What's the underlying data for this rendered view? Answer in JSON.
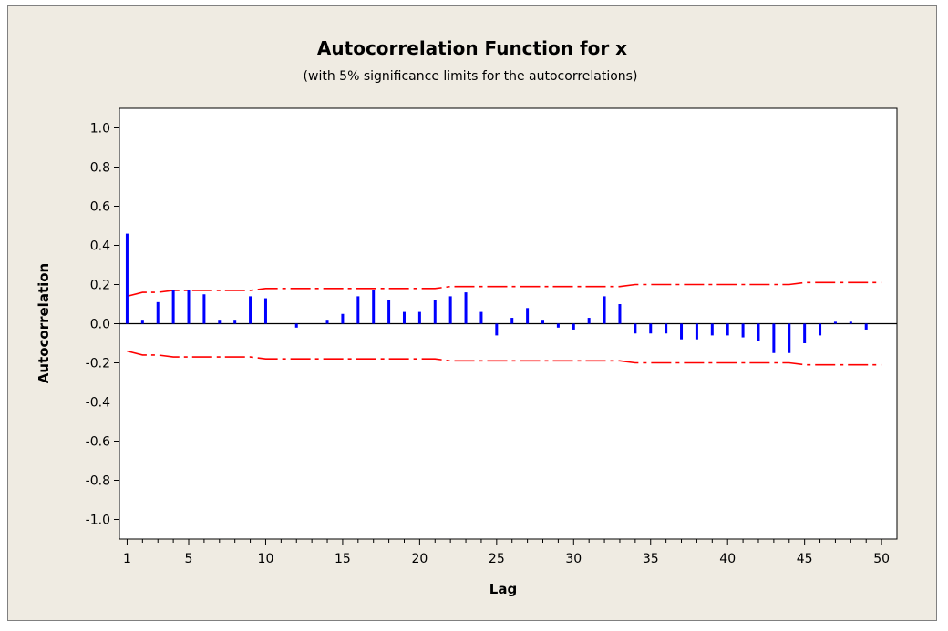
{
  "chart_data": {
    "type": "bar",
    "title": "Autocorrelation Function for x",
    "subtitle": "(with 5% significance limits for the autocorrelations)",
    "xlabel": "Lag",
    "ylabel": "Autocorrelation",
    "xlim": [
      0.5,
      51
    ],
    "ylim": [
      -1.1,
      1.1
    ],
    "x_ticks": [
      1,
      5,
      10,
      15,
      20,
      25,
      30,
      35,
      40,
      45,
      50
    ],
    "y_ticks": [
      1.0,
      0.8,
      0.6,
      0.4,
      0.2,
      0.0,
      -0.2,
      -0.4,
      -0.6,
      -0.8,
      -1.0
    ],
    "y_tick_labels": [
      "1.0",
      "0.8",
      "0.6",
      "0.4",
      "0.2",
      "0.0",
      "-0.2",
      "-0.4",
      "-0.6",
      "-0.8",
      "-1.0"
    ],
    "grid": false,
    "series": [
      {
        "name": "Autocorrelation",
        "color": "#0000ff",
        "x": [
          1,
          2,
          3,
          4,
          5,
          6,
          7,
          8,
          9,
          10,
          11,
          12,
          13,
          14,
          15,
          16,
          17,
          18,
          19,
          20,
          21,
          22,
          23,
          24,
          25,
          26,
          27,
          28,
          29,
          30,
          31,
          32,
          33,
          34,
          35,
          36,
          37,
          38,
          39,
          40,
          41,
          42,
          43,
          44,
          45,
          46,
          47,
          48,
          49
        ],
        "values": [
          0.46,
          0.02,
          0.11,
          0.17,
          0.17,
          0.15,
          0.02,
          0.02,
          0.14,
          0.13,
          0.0,
          -0.02,
          0.0,
          0.02,
          0.05,
          0.14,
          0.17,
          0.12,
          0.06,
          0.06,
          0.12,
          0.14,
          0.16,
          0.06,
          -0.06,
          0.03,
          0.08,
          0.02,
          -0.02,
          -0.03,
          0.03,
          0.14,
          0.1,
          -0.05,
          -0.05,
          -0.05,
          -0.08,
          -0.08,
          -0.06,
          -0.06,
          -0.07,
          -0.09,
          -0.15,
          -0.15,
          -0.1,
          -0.06,
          0.01,
          0.01,
          -0.03
        ]
      }
    ],
    "significance_limits": {
      "color": "#ff0000",
      "style": "dash-dot",
      "lags": [
        1,
        2,
        3,
        4,
        5,
        6,
        7,
        8,
        9,
        10,
        11,
        12,
        13,
        14,
        15,
        16,
        17,
        18,
        19,
        20,
        21,
        22,
        23,
        24,
        25,
        26,
        27,
        28,
        29,
        30,
        31,
        32,
        33,
        34,
        35,
        36,
        37,
        38,
        39,
        40,
        41,
        42,
        43,
        44,
        45,
        46,
        47,
        48,
        49,
        50
      ],
      "upper": [
        0.14,
        0.16,
        0.16,
        0.17,
        0.17,
        0.17,
        0.17,
        0.17,
        0.17,
        0.18,
        0.18,
        0.18,
        0.18,
        0.18,
        0.18,
        0.18,
        0.18,
        0.18,
        0.18,
        0.18,
        0.18,
        0.19,
        0.19,
        0.19,
        0.19,
        0.19,
        0.19,
        0.19,
        0.19,
        0.19,
        0.19,
        0.19,
        0.19,
        0.2,
        0.2,
        0.2,
        0.2,
        0.2,
        0.2,
        0.2,
        0.2,
        0.2,
        0.2,
        0.2,
        0.21,
        0.21,
        0.21,
        0.21,
        0.21,
        0.21
      ]
    }
  }
}
